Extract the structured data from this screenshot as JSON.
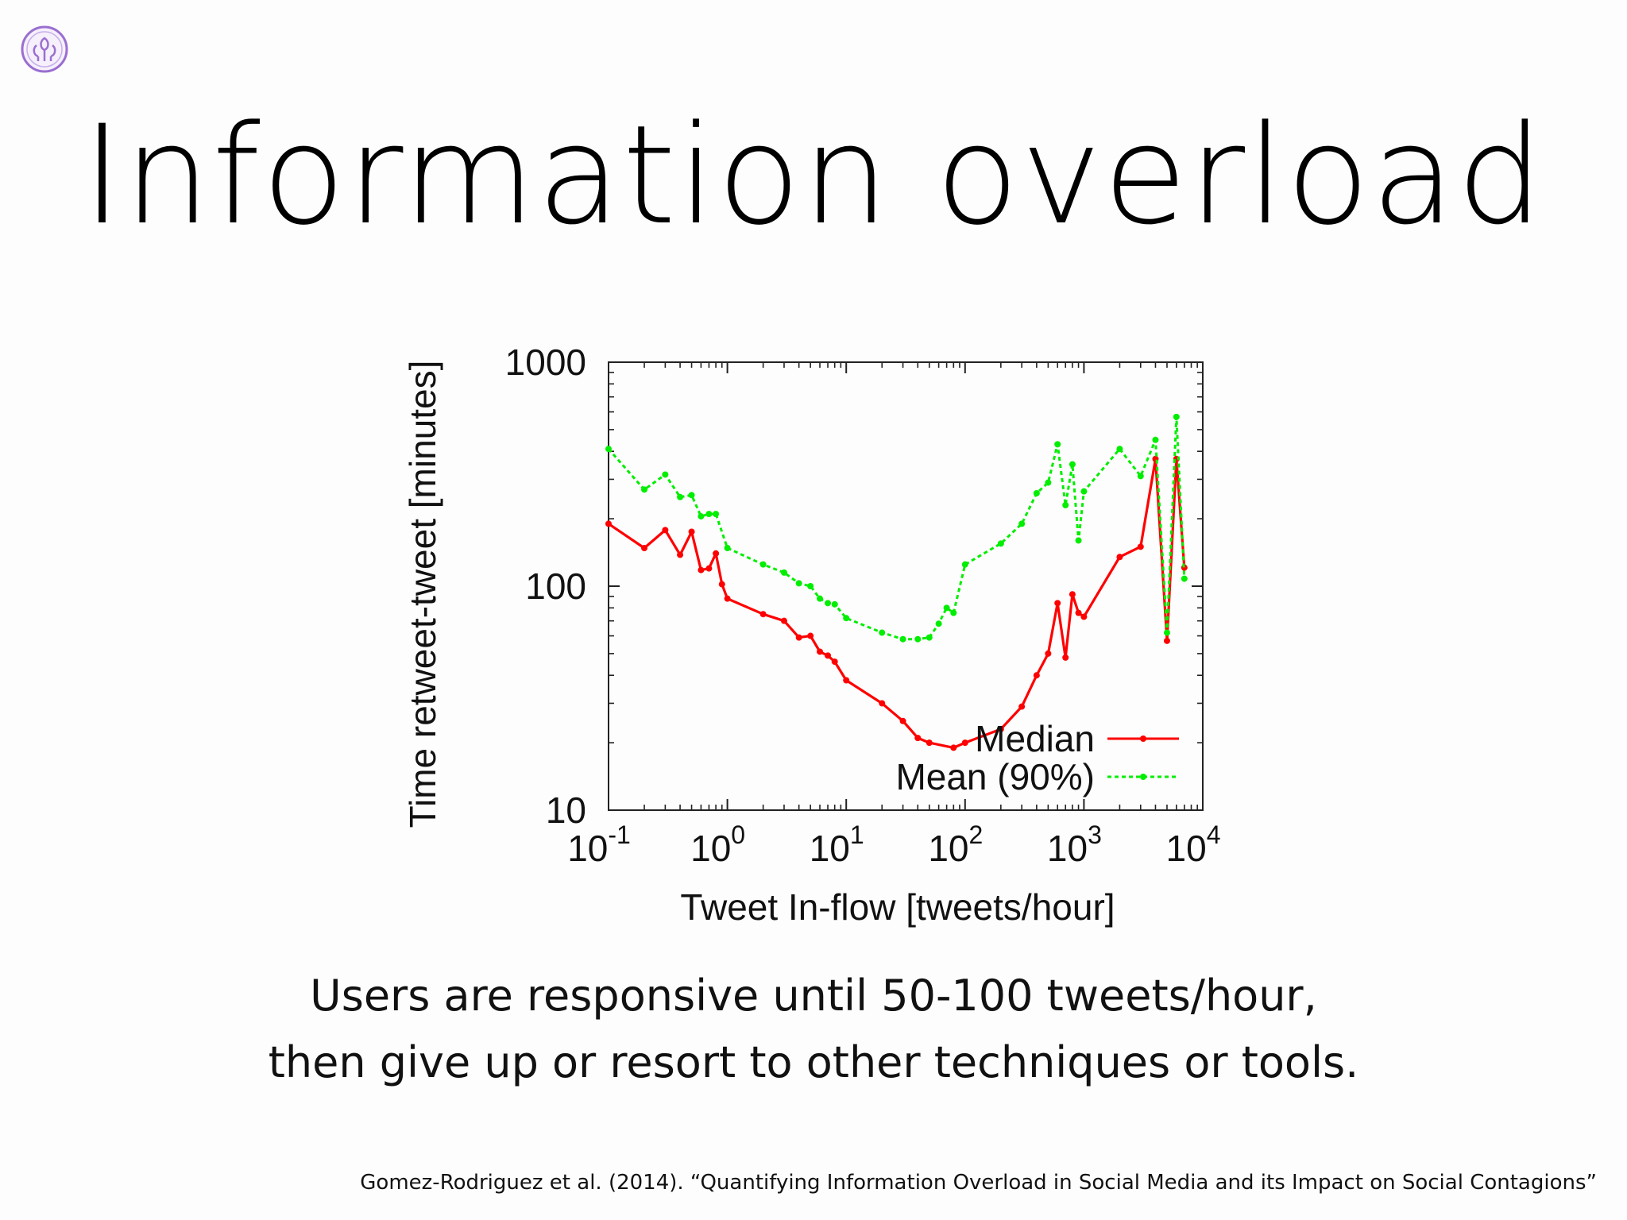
{
  "slide": {
    "title": "Information overload",
    "caption_line1": "Users are responsive until 50-100 tweets/hour,",
    "caption_line2": "then give up or resort to other techniques or tools.",
    "citation": "Gomez-Rodriguez et al. (2014). “Quantifying Information Overload in Social Media and its Impact on Social Contagions”",
    "logo_icon": "crest-logo-icon",
    "logo_color": "#9a6fd0"
  },
  "chart_data": {
    "type": "line",
    "title": "",
    "xlabel": "Tweet In-flow [tweets/hour]",
    "ylabel": "Time retweet-tweet [minutes]",
    "xscale": "log",
    "yscale": "log",
    "xlim": [
      0.1,
      10000
    ],
    "ylim": [
      10,
      1000
    ],
    "x_ticks": [
      {
        "value": 0.1,
        "base": "10",
        "exp": "-1"
      },
      {
        "value": 1,
        "base": "10",
        "exp": "0"
      },
      {
        "value": 10,
        "base": "10",
        "exp": "1"
      },
      {
        "value": 100,
        "base": "10",
        "exp": "2"
      },
      {
        "value": 1000,
        "base": "10",
        "exp": "3"
      },
      {
        "value": 10000,
        "base": "10",
        "exp": "4"
      }
    ],
    "y_ticks": [
      {
        "value": 10,
        "label": "10"
      },
      {
        "value": 100,
        "label": "100"
      },
      {
        "value": 1000,
        "label": "1000"
      }
    ],
    "grid": false,
    "legend_position": "bottom-right",
    "series": [
      {
        "name": "Median",
        "color": "#ff0000",
        "style": "solid",
        "points": [
          [
            0.1,
            190
          ],
          [
            0.2,
            148
          ],
          [
            0.3,
            178
          ],
          [
            0.4,
            138
          ],
          [
            0.5,
            175
          ],
          [
            0.6,
            118
          ],
          [
            0.7,
            120
          ],
          [
            0.8,
            140
          ],
          [
            0.9,
            102
          ],
          [
            1.0,
            88
          ],
          [
            2.0,
            75
          ],
          [
            3.0,
            70
          ],
          [
            4.0,
            59
          ],
          [
            5.0,
            60
          ],
          [
            6.0,
            51
          ],
          [
            7.0,
            49
          ],
          [
            8.0,
            46
          ],
          [
            10,
            38
          ],
          [
            20,
            30
          ],
          [
            30,
            25
          ],
          [
            40,
            21
          ],
          [
            50,
            20
          ],
          [
            80,
            19
          ],
          [
            100,
            20
          ],
          [
            200,
            23
          ],
          [
            300,
            29
          ],
          [
            400,
            40
          ],
          [
            500,
            50
          ],
          [
            600,
            84
          ],
          [
            700,
            48
          ],
          [
            800,
            92
          ],
          [
            900,
            76
          ],
          [
            1000,
            73
          ],
          [
            2000,
            135
          ],
          [
            3000,
            150
          ],
          [
            4000,
            370
          ],
          [
            5000,
            57
          ],
          [
            6000,
            370
          ],
          [
            7000,
            121
          ]
        ]
      },
      {
        "name": "Mean (90%)",
        "color": "#00ee00",
        "style": "dashed",
        "points": [
          [
            0.1,
            410
          ],
          [
            0.2,
            270
          ],
          [
            0.3,
            315
          ],
          [
            0.4,
            250
          ],
          [
            0.5,
            255
          ],
          [
            0.6,
            205
          ],
          [
            0.7,
            210
          ],
          [
            0.8,
            210
          ],
          [
            1.0,
            148
          ],
          [
            2.0,
            125
          ],
          [
            3.0,
            115
          ],
          [
            4.0,
            103
          ],
          [
            5.0,
            100
          ],
          [
            6.0,
            88
          ],
          [
            7.0,
            84
          ],
          [
            8.0,
            83
          ],
          [
            10,
            72
          ],
          [
            20,
            62
          ],
          [
            30,
            58
          ],
          [
            40,
            58
          ],
          [
            50,
            59
          ],
          [
            60,
            68
          ],
          [
            70,
            80
          ],
          [
            80,
            76
          ],
          [
            100,
            125
          ],
          [
            200,
            155
          ],
          [
            300,
            190
          ],
          [
            400,
            260
          ],
          [
            500,
            290
          ],
          [
            600,
            430
          ],
          [
            700,
            230
          ],
          [
            800,
            350
          ],
          [
            900,
            160
          ],
          [
            1000,
            265
          ],
          [
            2000,
            410
          ],
          [
            3000,
            310
          ],
          [
            4000,
            450
          ],
          [
            5000,
            62
          ],
          [
            6000,
            570
          ],
          [
            7000,
            108
          ]
        ]
      }
    ]
  }
}
